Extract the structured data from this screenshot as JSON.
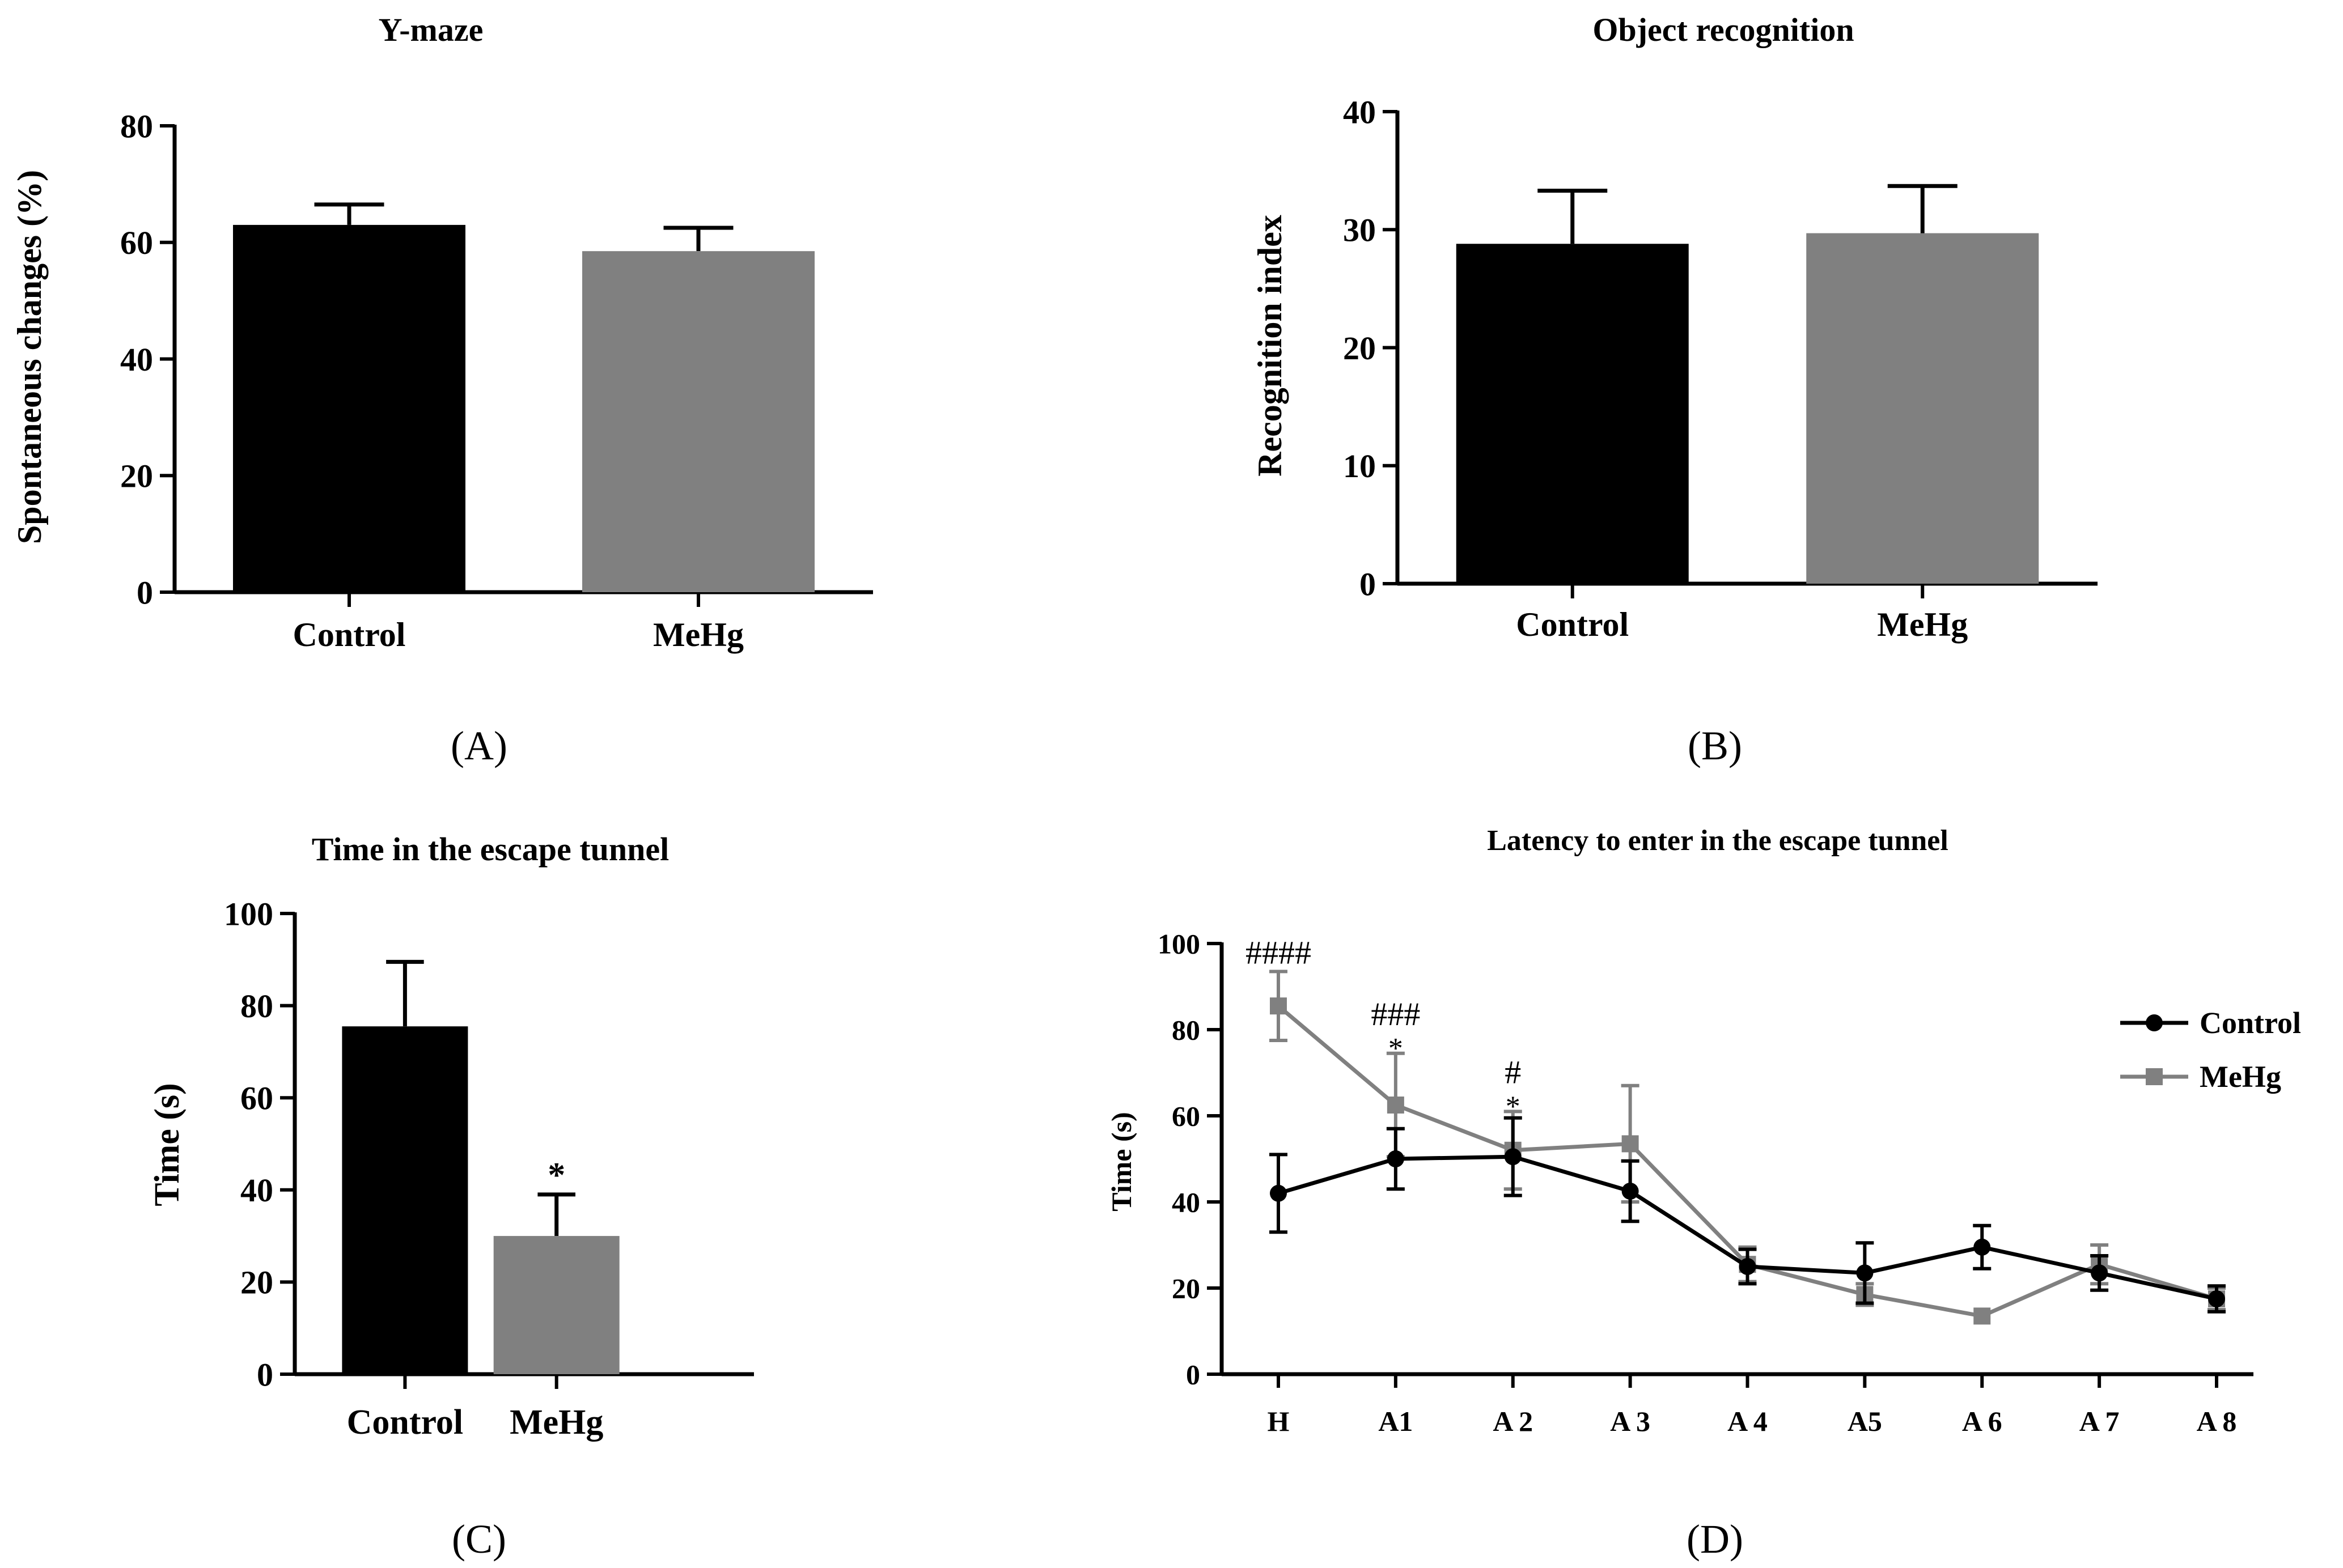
{
  "figure": {
    "panel_labels": [
      "(A)",
      "(B)",
      "(C)",
      "(D)"
    ]
  },
  "chart_data": [
    {
      "panel": "(A)",
      "type": "bar",
      "title": "Y-maze",
      "xlabel": "",
      "ylabel": "Spontaneous changes (%)",
      "ylim": [
        0,
        80
      ],
      "yticks": [
        0,
        20,
        40,
        60,
        80
      ],
      "categories": [
        "Control",
        "MeHg"
      ],
      "values": [
        63,
        58.5
      ],
      "errors": [
        3.5,
        4
      ],
      "colors": [
        "#000000",
        "#808080"
      ],
      "significance": [
        "",
        ""
      ],
      "grid": false
    },
    {
      "panel": "(B)",
      "type": "bar",
      "title": "Object recognition",
      "xlabel": "",
      "ylabel": "Recognition index",
      "ylim": [
        0,
        40
      ],
      "yticks": [
        0,
        10,
        20,
        30,
        40
      ],
      "categories": [
        "Control",
        "MeHg"
      ],
      "values": [
        28.8,
        29.7
      ],
      "errors": [
        4.5,
        4
      ],
      "colors": [
        "#000000",
        "#808080"
      ],
      "significance": [
        "",
        ""
      ],
      "grid": false
    },
    {
      "panel": "(C)",
      "type": "bar",
      "title": "Time in the escape tunnel",
      "xlabel": "",
      "ylabel": "Time (s)",
      "ylim": [
        0,
        100
      ],
      "yticks": [
        0,
        20,
        40,
        60,
        80,
        100
      ],
      "categories": [
        "Control",
        "MeHg"
      ],
      "values": [
        75.5,
        30
      ],
      "errors": [
        14,
        9
      ],
      "colors": [
        "#000000",
        "#808080"
      ],
      "significance": [
        "",
        "*"
      ],
      "grid": false
    },
    {
      "panel": "(D)",
      "type": "line",
      "title": "Latency to enter in the escape tunnel",
      "xlabel": "",
      "ylabel": "Time (s)",
      "ylim": [
        0,
        100
      ],
      "yticks": [
        0,
        20,
        40,
        60,
        80,
        100
      ],
      "categories": [
        "H",
        "A1",
        "A 2",
        "A 3",
        "A 4",
        "A5",
        "A 6",
        "A 7",
        "A 8"
      ],
      "series": [
        {
          "name": "Control",
          "color": "#000000",
          "marker": "circle",
          "values": [
            42,
            50,
            50.5,
            42.5,
            25,
            23.5,
            29.5,
            23.5,
            17.5
          ],
          "errors": [
            9,
            7,
            9,
            7,
            4,
            7,
            5,
            4,
            3
          ]
        },
        {
          "name": "MeHg",
          "color": "#808080",
          "marker": "square",
          "values": [
            85.5,
            62.5,
            52,
            53.5,
            25.5,
            18.5,
            13.5,
            25.5,
            17.5
          ],
          "errors": [
            8,
            12,
            9,
            13.5,
            4,
            2.5,
            0,
            4.5,
            2.5
          ]
        }
      ],
      "annotations": [
        {
          "category": "H",
          "lines": [
            "####"
          ]
        },
        {
          "category": "A1",
          "lines": [
            "###",
            "*"
          ]
        },
        {
          "category": "A 2",
          "lines": [
            "#",
            "*"
          ]
        }
      ],
      "legend": "right",
      "grid": false
    }
  ]
}
